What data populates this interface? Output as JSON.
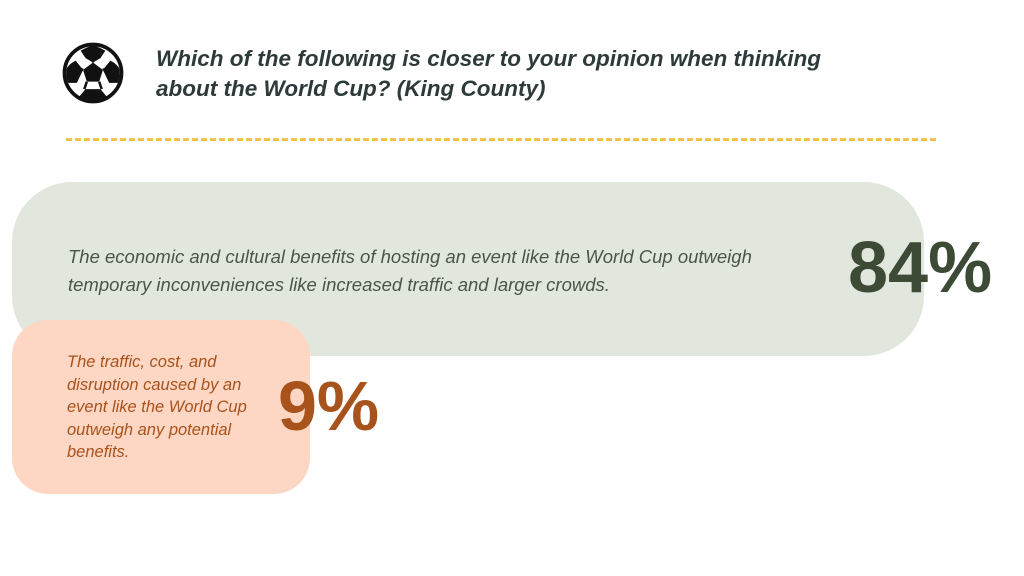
{
  "title": "Which of the following is closer to your opinion when thinking about the World Cup? (King County)",
  "icon": "soccer-ball-icon",
  "colors": {
    "divider": "#f2c24a",
    "majority_bg": "#e2e7dd",
    "majority_text": "#3d4a35",
    "minority_bg": "#fdd7c3",
    "minority_text": "#a8521c"
  },
  "chart_data": {
    "type": "bar",
    "categories": [
      "The economic and cultural benefits of hosting an event like the World Cup outweigh temporary inconveniences like increased traffic and larger crowds.",
      "The traffic, cost, and disruption caused by an event like the World Cup outweigh any potential benefits."
    ],
    "values": [
      84,
      9
    ],
    "value_labels": [
      "84%",
      "9%"
    ],
    "title": "Which of the following is closer to your opinion when thinking about the World Cup? (King County)"
  }
}
